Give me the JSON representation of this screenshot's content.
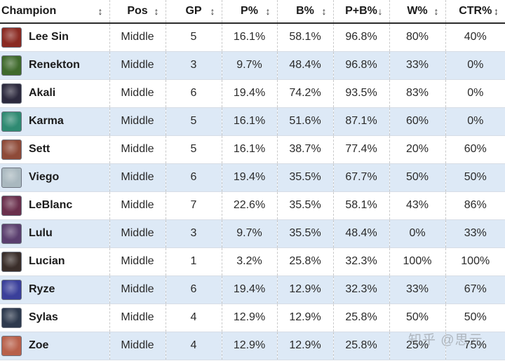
{
  "table": {
    "columns": [
      {
        "label": "Champion",
        "sort_icon": "sort-both-icon",
        "sort_glyph": "↕"
      },
      {
        "label": "Pos",
        "sort_icon": "sort-both-icon",
        "sort_glyph": "↕"
      },
      {
        "label": "GP",
        "sort_icon": "sort-both-icon",
        "sort_glyph": "↕"
      },
      {
        "label": "P%",
        "sort_icon": "sort-both-icon",
        "sort_glyph": "↕"
      },
      {
        "label": "B%",
        "sort_icon": "sort-both-icon",
        "sort_glyph": "↕"
      },
      {
        "label": "P+B%",
        "sort_icon": "sort-descending-icon",
        "sort_glyph": "↓"
      },
      {
        "label": "W%",
        "sort_icon": "sort-both-icon",
        "sort_glyph": "↕"
      },
      {
        "label": "CTR%",
        "sort_icon": "sort-both-icon",
        "sort_glyph": "↕"
      }
    ],
    "rows": [
      {
        "champion": "Lee Sin",
        "pos": "Middle",
        "gp": "5",
        "p": "16.1%",
        "b": "58.1%",
        "pb": "96.8%",
        "w": "80%",
        "ctr": "40%",
        "portrait_color": "#8a2a22"
      },
      {
        "champion": "Renekton",
        "pos": "Middle",
        "gp": "3",
        "p": "9.7%",
        "b": "48.4%",
        "pb": "96.8%",
        "w": "33%",
        "ctr": "0%",
        "portrait_color": "#3f6a2c"
      },
      {
        "champion": "Akali",
        "pos": "Middle",
        "gp": "6",
        "p": "19.4%",
        "b": "74.2%",
        "pb": "93.5%",
        "w": "83%",
        "ctr": "0%",
        "portrait_color": "#2d2a3e"
      },
      {
        "champion": "Karma",
        "pos": "Middle",
        "gp": "5",
        "p": "16.1%",
        "b": "51.6%",
        "pb": "87.1%",
        "w": "60%",
        "ctr": "0%",
        "portrait_color": "#2f8a72"
      },
      {
        "champion": "Sett",
        "pos": "Middle",
        "gp": "5",
        "p": "16.1%",
        "b": "38.7%",
        "pb": "77.4%",
        "w": "20%",
        "ctr": "60%",
        "portrait_color": "#8e4a38"
      },
      {
        "champion": "Viego",
        "pos": "Middle",
        "gp": "6",
        "p": "19.4%",
        "b": "35.5%",
        "pb": "67.7%",
        "w": "50%",
        "ctr": "50%",
        "portrait_color": "#a9b8bf"
      },
      {
        "champion": "LeBlanc",
        "pos": "Middle",
        "gp": "7",
        "p": "22.6%",
        "b": "35.5%",
        "pb": "58.1%",
        "w": "43%",
        "ctr": "86%",
        "portrait_color": "#6a2f4c"
      },
      {
        "champion": "Lulu",
        "pos": "Middle",
        "gp": "3",
        "p": "9.7%",
        "b": "35.5%",
        "pb": "48.4%",
        "w": "0%",
        "ctr": "33%",
        "portrait_color": "#5a3e6e"
      },
      {
        "champion": "Lucian",
        "pos": "Middle",
        "gp": "1",
        "p": "3.2%",
        "b": "25.8%",
        "pb": "32.3%",
        "w": "100%",
        "ctr": "100%",
        "portrait_color": "#3a2e2a"
      },
      {
        "champion": "Ryze",
        "pos": "Middle",
        "gp": "6",
        "p": "19.4%",
        "b": "12.9%",
        "pb": "32.3%",
        "w": "33%",
        "ctr": "67%",
        "portrait_color": "#3a3f9a"
      },
      {
        "champion": "Sylas",
        "pos": "Middle",
        "gp": "4",
        "p": "12.9%",
        "b": "12.9%",
        "pb": "25.8%",
        "w": "50%",
        "ctr": "50%",
        "portrait_color": "#2e3a4e"
      },
      {
        "champion": "Zoe",
        "pos": "Middle",
        "gp": "4",
        "p": "12.9%",
        "b": "12.9%",
        "pb": "25.8%",
        "w": "25%",
        "ctr": "75%",
        "portrait_color": "#b8604a"
      }
    ]
  },
  "watermark": "知乎 @思元"
}
